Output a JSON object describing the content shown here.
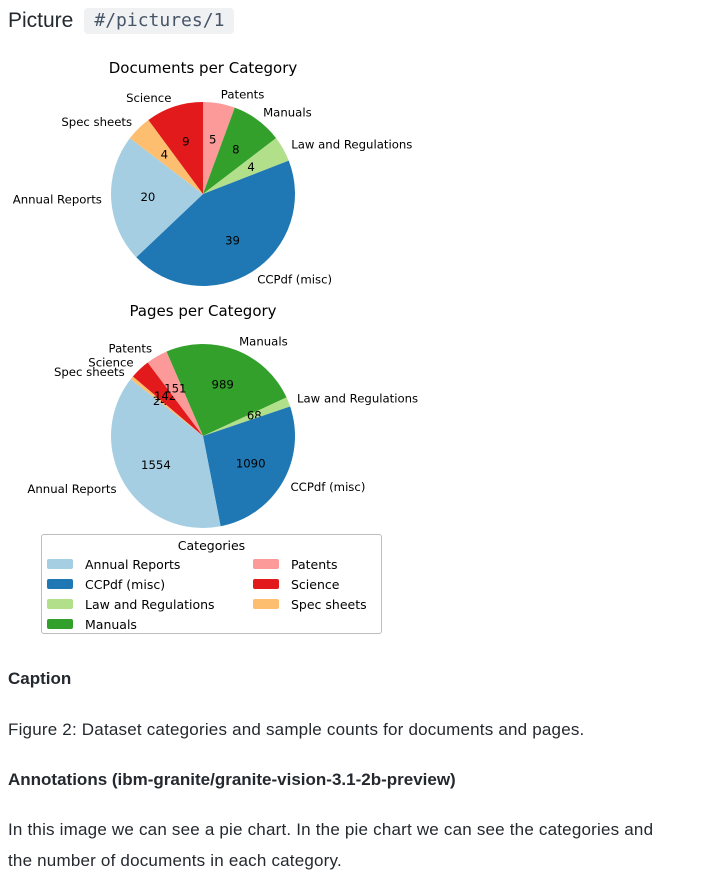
{
  "header": {
    "label": "Picture",
    "path_badge": "#/pictures/1"
  },
  "chart_data": [
    {
      "type": "pie",
      "title": "Documents per Category",
      "start_angle_deg": 0,
      "value_label_distance": 0.6,
      "name_label_distance": 1.1,
      "slices": [
        {
          "label": "Patents",
          "value": 5,
          "color": "#fb9a99"
        },
        {
          "label": "Manuals",
          "value": 8,
          "color": "#33a02c"
        },
        {
          "label": "Law and Regulations",
          "value": 4,
          "color": "#b2df8a"
        },
        {
          "label": "CCPdf (misc)",
          "value": 39,
          "color": "#1f78b4"
        },
        {
          "label": "Annual Reports",
          "value": 20,
          "color": "#a6cee3"
        },
        {
          "label": "Spec sheets",
          "value": 4,
          "color": "#fdbf6f"
        },
        {
          "label": "Science",
          "value": 9,
          "color": "#e31a1c"
        }
      ]
    },
    {
      "type": "pie",
      "title": "Pages per Category",
      "start_angle_deg": -23.4,
      "value_label_distance": 0.6,
      "name_label_distance": 1.1,
      "slices": [
        {
          "label": "Manuals",
          "value": 989,
          "color": "#33a02c"
        },
        {
          "label": "Law and Regulations",
          "value": 68,
          "color": "#b2df8a"
        },
        {
          "label": "CCPdf (misc)",
          "value": 1090,
          "color": "#1f78b4"
        },
        {
          "label": "Annual Reports",
          "value": 1554,
          "color": "#a6cee3"
        },
        {
          "label": "Spec sheets",
          "value": 24,
          "color": "#fdbf6f"
        },
        {
          "label": "Science",
          "value": 142,
          "color": "#e31a1c"
        },
        {
          "label": "Patents",
          "value": 151,
          "color": "#fb9a99"
        }
      ]
    }
  ],
  "legend": {
    "title": "Categories",
    "items": [
      {
        "label": "Annual Reports",
        "color": "#a6cee3"
      },
      {
        "label": "CCPdf (misc)",
        "color": "#1f78b4"
      },
      {
        "label": "Law and Regulations",
        "color": "#b2df8a"
      },
      {
        "label": "Manuals",
        "color": "#33a02c"
      },
      {
        "label": "Patents",
        "color": "#fb9a99"
      },
      {
        "label": "Science",
        "color": "#e31a1c"
      },
      {
        "label": "Spec sheets",
        "color": "#fdbf6f"
      }
    ]
  },
  "caption": {
    "heading": "Caption",
    "text": "Figure 2: Dataset categories and sample counts for documents and pages."
  },
  "annotations": {
    "heading": "Annotations (ibm-granite/granite-vision-3.1-2b-preview)",
    "lines": [
      "In this image we can see a pie chart. In the pie chart we can see the categories and",
      "the number of documents in each category."
    ]
  }
}
